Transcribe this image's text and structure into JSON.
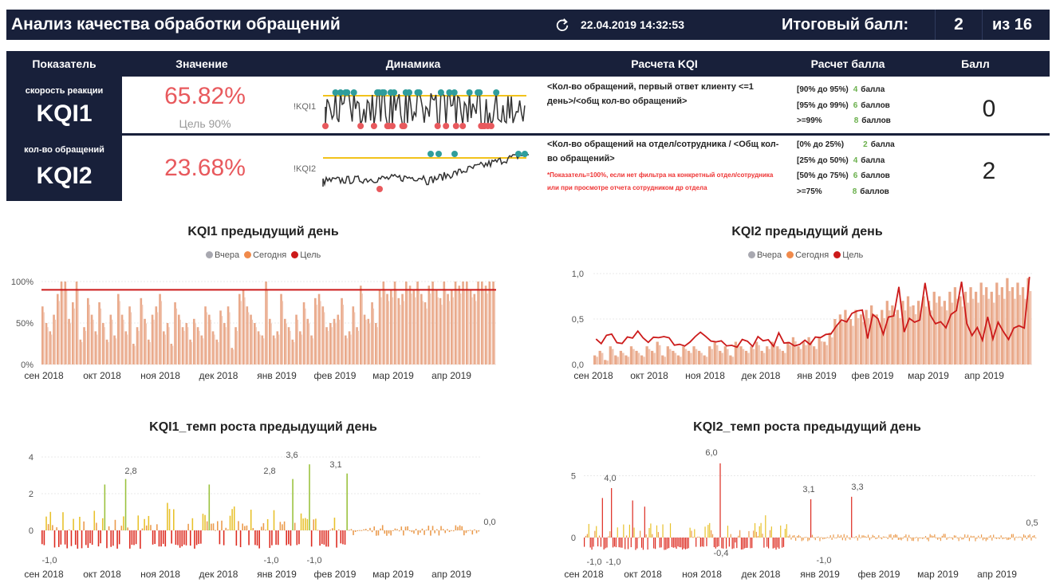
{
  "header": {
    "title": "Анализ качества обработки обращений",
    "timestamp": "22.04.2019 14:32:53",
    "total_label": "Итоговый балл:",
    "total_value": "2",
    "total_of": "из 16",
    "navy": "#18203a"
  },
  "table": {
    "columns": [
      "Показатель",
      "Значение",
      "Динамика",
      "Расчета KQI",
      "Расчет балла",
      "Балл"
    ],
    "rows": [
      {
        "subtitle": "скорость реакции",
        "kqi": "KQI1",
        "value": "65.82%",
        "target": "Цель 90%",
        "spark_label": "!KQI1",
        "formula": "<Кол-во обращений, первый ответ клиенту <=1 день>/<общ кол-во обращений>",
        "note": "",
        "scoring": [
          {
            "range": "[90% до 95%)",
            "pts": "4",
            "unit": "балла"
          },
          {
            "range": "[95% до 99%)",
            "pts": "6",
            "unit": "баллов"
          },
          {
            "range": ">=99%",
            "pts": "8",
            "unit": "баллов"
          }
        ],
        "score": "0"
      },
      {
        "subtitle": "кол-во обращений",
        "kqi": "KQI2",
        "value": "23.68%",
        "target": "",
        "spark_label": "!KQI2",
        "formula": "<Кол-во обращений на отдел/сотрудника / <Общ кол-во обращений>",
        "note": "*Показатель=100%, если нет фильтра на конкретный отдел/сотрудника или при просмотре отчета сотрудником др отдела",
        "scoring": [
          {
            "range": "[0% до 25%)",
            "pts": "2",
            "unit": "балла"
          },
          {
            "range": "[25% до 50%)",
            "pts": "4",
            "unit": "балла"
          },
          {
            "range": "[50% до 75%)",
            "pts": "6",
            "unit": "баллов"
          },
          {
            "range": ">=75%",
            "pts": "8",
            "unit": "баллов"
          }
        ],
        "score": "2"
      }
    ]
  },
  "charts": {
    "kqi1_prev": {
      "title": "KQI1 предыдущий день"
    },
    "kqi2_prev": {
      "title": "KQI2 предыдущий день"
    },
    "kqi1_growth": {
      "title": "KQI1_темп роста предыдущий день"
    },
    "kqi2_growth": {
      "title": "KQI2_темп роста предыдущий день"
    },
    "legend": [
      "Вчера",
      "Сегодня",
      "Цель"
    ],
    "legend_colors": [
      "#a8a8b0",
      "#f08a4b",
      "#cc1a1a"
    ]
  },
  "chart_data": [
    {
      "type": "bar",
      "title": "KQI1 предыдущий день",
      "x_ticks": [
        "сен 2018",
        "окт 2018",
        "ноя 2018",
        "дек 2018",
        "янв 2019",
        "фев 2019",
        "мар 2019",
        "апр 2019"
      ],
      "y_ticks": [
        "0%",
        "50%",
        "100%"
      ],
      "ylim": [
        0,
        100
      ],
      "target": 90,
      "series": [
        {
          "name": "Сегодня",
          "values": [
            70,
            50,
            40,
            60,
            85,
            100,
            100,
            55,
            75,
            100,
            30,
            45,
            80,
            60,
            40,
            75,
            50,
            30,
            60,
            35,
            85,
            60,
            40,
            70,
            25,
            45,
            80,
            55,
            30,
            60,
            70,
            85,
            40,
            50,
            25,
            75,
            60,
            45,
            50,
            30,
            55,
            45,
            35,
            70,
            60,
            40,
            30,
            65,
            50,
            70,
            20,
            45,
            85,
            90,
            70,
            60,
            50,
            40,
            35,
            100,
            55,
            35,
            40,
            85,
            55,
            45,
            30,
            60,
            40,
            75,
            55,
            35,
            80,
            85,
            70,
            45,
            50,
            55,
            60,
            80,
            35,
            40,
            70,
            45,
            95,
            60,
            55,
            75,
            50,
            90,
            100,
            85,
            90,
            100,
            80,
            85,
            100,
            95,
            90,
            100,
            85,
            75,
            95,
            100,
            90,
            80,
            100,
            85,
            90,
            100,
            95,
            100,
            100,
            90,
            85,
            100,
            100,
            95,
            100,
            100
          ]
        }
      ]
    },
    {
      "type": "bar",
      "title": "KQI2 предыдущий день",
      "x_ticks": [
        "сен 2018",
        "окт 2018",
        "ноя 2018",
        "дек 2018",
        "янв 2019",
        "фев 2019",
        "мар 2019",
        "апр 2019"
      ],
      "y_ticks": [
        "0,0",
        "0,5",
        "1,0"
      ],
      "ylim": [
        0,
        1
      ],
      "series": [
        {
          "name": "Сегодня",
          "values": [
            0.1,
            0.15,
            0.05,
            0.2,
            0.1,
            0.15,
            0.1,
            0.2,
            0.15,
            0.1,
            0.2,
            0.15,
            0.25,
            0.1,
            0.2,
            0.15,
            0.1,
            0.2,
            0.15,
            0.2,
            0.15,
            0.1,
            0.2,
            0.25,
            0.15,
            0.2,
            0.1,
            0.25,
            0.2,
            0.15,
            0.2,
            0.25,
            0.15,
            0.2,
            0.25,
            0.2,
            0.15,
            0.25,
            0.3,
            0.2,
            0.25,
            0.3,
            0.2,
            0.3,
            0.25,
            0.35,
            0.5,
            0.55,
            0.6,
            0.5,
            0.6,
            0.55,
            0.6,
            0.65,
            0.55,
            0.6,
            0.7,
            0.65,
            0.6,
            0.7,
            0.75,
            0.65,
            0.7,
            0.75,
            0.7,
            0.8,
            0.75,
            0.7,
            0.8,
            0.85,
            0.75,
            0.8,
            0.85,
            0.8,
            0.9,
            0.85,
            0.8,
            0.9,
            0.85,
            0.95,
            0.85,
            0.9,
            0.85,
            0.95
          ]
        }
      ]
    },
    {
      "type": "bar",
      "title": "KQI1_темп роста предыдущий день",
      "x_ticks": [
        "сен 2018",
        "окт 2018",
        "ноя 2018",
        "дек 2018",
        "янв 2019",
        "фев 2019",
        "мар 2019",
        "апр 2019"
      ],
      "y_ticks": [
        "0",
        "2",
        "4"
      ],
      "ylim": [
        -1,
        4
      ],
      "data_labels": [
        "2,8",
        "3,6",
        "2,8",
        "3,1",
        "0,0",
        "-1,0",
        "-1,0",
        "-1,0"
      ]
    },
    {
      "type": "bar",
      "title": "KQI2_темп роста предыдущий день",
      "x_ticks": [
        "сен 2018",
        "окт 2018",
        "ноя 2018",
        "дек 2018",
        "янв 2019",
        "фев 2019",
        "мар 2019",
        "апр 2019"
      ],
      "y_ticks": [
        "0",
        "5"
      ],
      "ylim": [
        -1,
        6
      ],
      "data_labels": [
        "4,0",
        "6,0",
        "3,1",
        "3,3",
        "0,5",
        "-1,0",
        "-1,0",
        "-0,4",
        "-1,0"
      ]
    }
  ]
}
